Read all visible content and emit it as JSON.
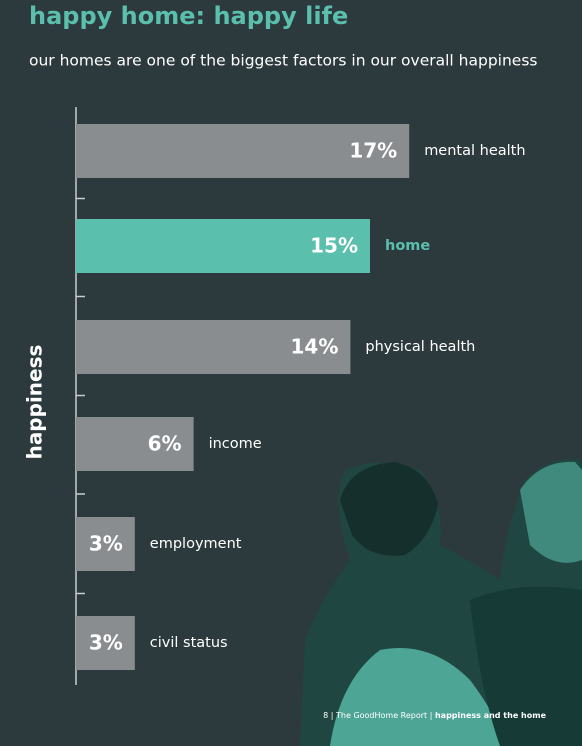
{
  "chart_data": {
    "type": "bar",
    "orientation": "horizontal",
    "title": "happy home: happy life",
    "subtitle": "our homes are one of the biggest factors in our overall happiness",
    "y_label": "happiness",
    "categories": [
      "mental health",
      "home",
      "physical health",
      "income",
      "employment",
      "civil status"
    ],
    "values": [
      17,
      15,
      14,
      6,
      3,
      3
    ],
    "value_labels": [
      "17%",
      "15%",
      "14%",
      "6%",
      "3%",
      "3%"
    ],
    "color": "#8a8d90",
    "colors": [
      "#8a8d90",
      "#5bbfad",
      "#8a8d90",
      "#8a8d90",
      "#8a8d90",
      "#8a8d90"
    ]
  },
  "footer": {
    "page": "8",
    "report": "The GoodHome Report",
    "section": "happiness and the home"
  }
}
